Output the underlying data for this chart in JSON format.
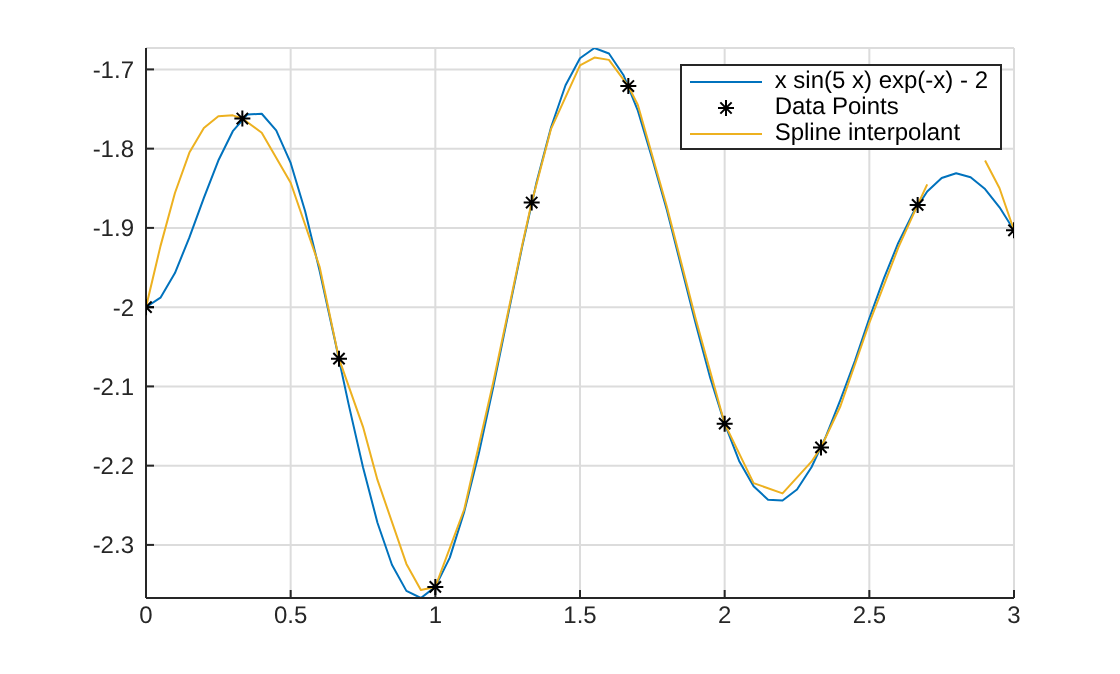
{
  "chart_data": {
    "type": "line",
    "xlim": [
      0,
      3
    ],
    "xticks": [
      0,
      0.5,
      1,
      1.5,
      2,
      2.5,
      3
    ],
    "ylim": [
      -2.367,
      -1.673
    ],
    "yticks": [
      -2.3,
      -2.2,
      -2.1,
      -2,
      -1.9,
      -1.8,
      -1.7
    ],
    "grid": true,
    "legend": "top right",
    "series": [
      {
        "name": "x sin(5 x) exp(-x) - 2",
        "color": "#0072bd",
        "marker": "none",
        "x": [
          0,
          0.05,
          0.1,
          0.15,
          0.2,
          0.25,
          0.3,
          0.35,
          0.4,
          0.45,
          0.5,
          0.55,
          0.6,
          0.65,
          0.7,
          0.75,
          0.8,
          0.85,
          0.9,
          0.95,
          1,
          1.05,
          1.1,
          1.15,
          1.2,
          1.25,
          1.3,
          1.35,
          1.4,
          1.45,
          1.5,
          1.55,
          1.6,
          1.65,
          1.7,
          1.75,
          1.8,
          1.85,
          1.9,
          1.95,
          2,
          2.05,
          2.1,
          2.15,
          2.2,
          2.25,
          2.3,
          2.35,
          2.4,
          2.45,
          2.5,
          2.55,
          2.6,
          2.65,
          2.7,
          2.75,
          2.8,
          2.85,
          2.9,
          2.95,
          3
        ],
        "values": [
          -2,
          -1.988,
          -1.957,
          -1.912,
          -1.862,
          -1.815,
          -1.778,
          -1.757,
          -1.756,
          -1.777,
          -1.818,
          -1.879,
          -1.954,
          -2.037,
          -2.122,
          -2.202,
          -2.272,
          -2.325,
          -2.358,
          -2.367,
          -2.353,
          -2.316,
          -2.258,
          -2.185,
          -2.101,
          -2.012,
          -1.924,
          -1.842,
          -1.773,
          -1.72,
          -1.686,
          -1.673,
          -1.68,
          -1.707,
          -1.752,
          -1.813,
          -1.877,
          -1.949,
          -2.021,
          -2.089,
          -2.147,
          -2.194,
          -2.226,
          -2.243,
          -2.244,
          -2.23,
          -2.202,
          -2.163,
          -2.117,
          -2.068,
          -2.014,
          -1.964,
          -1.919,
          -1.882,
          -1.854,
          -1.837,
          -1.831,
          -1.836,
          -1.851,
          -1.874,
          -1.903
        ]
      },
      {
        "name": "Data Points",
        "type": "scatter",
        "color": "#000000",
        "marker": "cross",
        "x": [
          0,
          0.333,
          0.667,
          1,
          1.333,
          1.667,
          2,
          2.333,
          2.667,
          3
        ],
        "values": [
          -2,
          -1.762,
          -2.065,
          -2.353,
          -1.868,
          -1.721,
          -2.147,
          -2.177,
          -1.871,
          -1.903
        ]
      },
      {
        "name": "Spline interpolant",
        "color": "#edb120",
        "marker": "none",
        "x": [
          0,
          0.05,
          0.1,
          0.15,
          0.2,
          0.25,
          0.3,
          0.333,
          0.4,
          0.5,
          0.6,
          0.667,
          0.75,
          0.8,
          0.9,
          0.95,
          1,
          1.1,
          1.2,
          1.3,
          1.333,
          1.4,
          1.5,
          1.55,
          1.6,
          1.667,
          1.7,
          1.8,
          1.9,
          2,
          2.1,
          2.2,
          2.3,
          2.333,
          2.4,
          2.5,
          2.6,
          2.667,
          2.7,
          2.8,
          2.9,
          2.95,
          3
        ],
        "values": [
          -2,
          -1.923,
          -1.856,
          -1.805,
          -1.774,
          -1.759,
          -1.758,
          -1.762,
          -1.78,
          -1.843,
          -1.949,
          -2.065,
          -2.151,
          -2.218,
          -2.324,
          -2.357,
          -2.353,
          -2.255,
          -2.095,
          -1.922,
          -1.868,
          -1.775,
          -1.695,
          -1.685,
          -1.688,
          -1.721,
          -1.745,
          -1.873,
          -2.015,
          -2.147,
          -2.222,
          -2.235,
          -2.195,
          -2.177,
          -2.125,
          -2.02,
          -1.925,
          -1.871,
          -1.845,
          null,
          -1.815,
          -1.85,
          -1.903
        ]
      }
    ]
  }
}
